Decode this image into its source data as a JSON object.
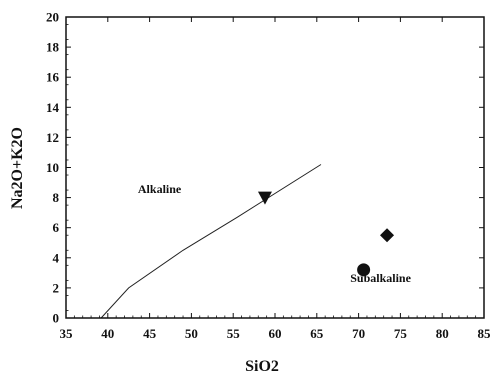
{
  "chart_data": {
    "type": "scatter",
    "xlabel": "SiO2",
    "ylabel": "Na2O+K2O",
    "xlim": [
      35,
      85
    ],
    "ylim": [
      0,
      20
    ],
    "xticks": [
      "35",
      "40",
      "45",
      "50",
      "55",
      "60",
      "65",
      "70",
      "75",
      "80",
      "85"
    ],
    "yticks": [
      "0",
      "2",
      "4",
      "6",
      "8",
      "10",
      "12",
      "14",
      "16",
      "18",
      "20"
    ],
    "grid": false,
    "boundary_line": {
      "x": [
        39.2,
        42.5,
        49,
        55.5,
        65.5
      ],
      "y": [
        0,
        2,
        4.5,
        6.7,
        10.2
      ]
    },
    "region_labels": [
      {
        "text": "Alkaline",
        "x": 43.6,
        "y": 8.3
      },
      {
        "text": "Subalkaline",
        "x": 69,
        "y": 2.4
      }
    ],
    "points": [
      {
        "x": 58.8,
        "y": 8.0,
        "marker": "triangle-down"
      },
      {
        "x": 73.4,
        "y": 5.5,
        "marker": "diamond"
      },
      {
        "x": 70.6,
        "y": 3.2,
        "marker": "circle"
      }
    ]
  }
}
